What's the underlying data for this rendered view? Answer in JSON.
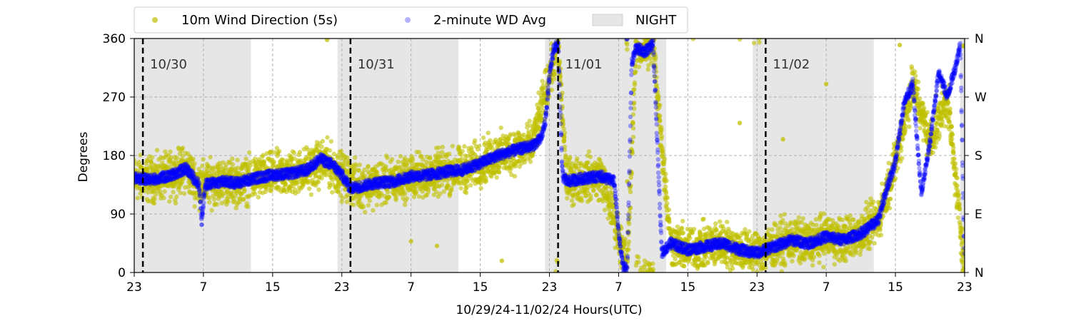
{
  "chart_data": {
    "type": "scatter",
    "title": "",
    "xlabel": "10/29/24-11/02/24  Hours(UTC)",
    "ylabel": "Degrees",
    "xlim": [
      0,
      96
    ],
    "ylim": [
      0,
      360
    ],
    "x_ticks": [
      0,
      8,
      16,
      24,
      32,
      40,
      48,
      56,
      64,
      72,
      80,
      88,
      96
    ],
    "x_tick_labels": [
      "23",
      "7",
      "15",
      "23",
      "7",
      "15",
      "23",
      "7",
      "15",
      "23",
      "7",
      "15",
      "23"
    ],
    "y_ticks": [
      0,
      90,
      180,
      270,
      360
    ],
    "y_tick_labels": [
      "0",
      "90",
      "180",
      "270",
      "360"
    ],
    "right_ticks": [
      0,
      90,
      180,
      270,
      360
    ],
    "right_tick_labels": [
      "N",
      "E",
      "S",
      "W",
      "N"
    ],
    "grid": true,
    "legend_position": "top",
    "legend": [
      {
        "label": "10m Wind Direction (5s)",
        "color": "#bfbf00",
        "marker": "dot"
      },
      {
        "label": "2-minute WD Avg",
        "color": "#0000ff",
        "marker": "dot"
      },
      {
        "label": "NIGHT",
        "color": "#e6e6e6",
        "marker": "patch"
      }
    ],
    "day_markers": [
      {
        "x": 1,
        "label": "10/30"
      },
      {
        "x": 25,
        "label": "10/31"
      },
      {
        "x": 49,
        "label": "11/01"
      },
      {
        "x": 73,
        "label": "11/02"
      }
    ],
    "night_periods": [
      [
        0,
        13.5
      ],
      [
        23.5,
        37.5
      ],
      [
        47.5,
        61.5
      ],
      [
        71.5,
        85.5
      ],
      [
        95.5,
        96
      ]
    ],
    "series": [
      {
        "name": "2-minute WD Avg",
        "color": "#0000ff",
        "points": [
          [
            0,
            145
          ],
          [
            2,
            143
          ],
          [
            4,
            148
          ],
          [
            6,
            160
          ],
          [
            7.5,
            135
          ],
          [
            7.8,
            80
          ],
          [
            8.2,
            135
          ],
          [
            10,
            140
          ],
          [
            12,
            138
          ],
          [
            14,
            145
          ],
          [
            16,
            150
          ],
          [
            18,
            152
          ],
          [
            20,
            158
          ],
          [
            21.5,
            175
          ],
          [
            23,
            165
          ],
          [
            24,
            150
          ],
          [
            25,
            130
          ],
          [
            26,
            132
          ],
          [
            28,
            138
          ],
          [
            30,
            140
          ],
          [
            32,
            148
          ],
          [
            34,
            150
          ],
          [
            36,
            155
          ],
          [
            38,
            158
          ],
          [
            40,
            168
          ],
          [
            42,
            180
          ],
          [
            44,
            188
          ],
          [
            46,
            195
          ],
          [
            47,
            205
          ],
          [
            47.5,
            230
          ],
          [
            48,
            300
          ],
          [
            48.5,
            345
          ],
          [
            49,
            350
          ],
          [
            49.5,
            150
          ],
          [
            50,
            140
          ],
          [
            52,
            145
          ],
          [
            54,
            148
          ],
          [
            55.5,
            140
          ],
          [
            56,
            60
          ],
          [
            56.5,
            10
          ],
          [
            57,
            5
          ],
          [
            57.5,
            320
          ],
          [
            58,
            345
          ],
          [
            59,
            340
          ],
          [
            60,
            350
          ],
          [
            61,
            30
          ],
          [
            62,
            45
          ],
          [
            64,
            35
          ],
          [
            66,
            40
          ],
          [
            68,
            45
          ],
          [
            70,
            35
          ],
          [
            72,
            30
          ],
          [
            74,
            40
          ],
          [
            76,
            50
          ],
          [
            78,
            45
          ],
          [
            80,
            55
          ],
          [
            82,
            50
          ],
          [
            84,
            60
          ],
          [
            86,
            80
          ],
          [
            87,
            130
          ],
          [
            88,
            170
          ],
          [
            89,
            260
          ],
          [
            90,
            290
          ],
          [
            91,
            120
          ],
          [
            92,
            200
          ],
          [
            93,
            310
          ],
          [
            94,
            270
          ],
          [
            95,
            320
          ],
          [
            95.5,
            350
          ],
          [
            96,
            5
          ]
        ]
      },
      {
        "name": "10m Wind Direction (5s)",
        "color": "#bfbf00",
        "points": [
          [
            0,
            145
          ],
          [
            2,
            143
          ],
          [
            4,
            148
          ],
          [
            6,
            160
          ],
          [
            7.5,
            135
          ],
          [
            10,
            140
          ],
          [
            12,
            138
          ],
          [
            14,
            145
          ],
          [
            16,
            150
          ],
          [
            18,
            152
          ],
          [
            20,
            158
          ],
          [
            22,
            170
          ],
          [
            24,
            150
          ],
          [
            26,
            132
          ],
          [
            28,
            138
          ],
          [
            30,
            140
          ],
          [
            32,
            148
          ],
          [
            34,
            150
          ],
          [
            36,
            155
          ],
          [
            38,
            158
          ],
          [
            40,
            168
          ],
          [
            42,
            180
          ],
          [
            44,
            188
          ],
          [
            46,
            195
          ],
          [
            48,
            300
          ],
          [
            49,
            350
          ],
          [
            50,
            140
          ],
          [
            52,
            145
          ],
          [
            54,
            148
          ],
          [
            56,
            60
          ],
          [
            57,
            5
          ],
          [
            58,
            345
          ],
          [
            60,
            350
          ],
          [
            62,
            45
          ],
          [
            64,
            35
          ],
          [
            66,
            40
          ],
          [
            68,
            45
          ],
          [
            70,
            35
          ],
          [
            72,
            30
          ],
          [
            74,
            40
          ],
          [
            76,
            50
          ],
          [
            78,
            45
          ],
          [
            80,
            55
          ],
          [
            82,
            50
          ],
          [
            84,
            60
          ],
          [
            86,
            80
          ],
          [
            88,
            170
          ],
          [
            90,
            290
          ],
          [
            92,
            200
          ],
          [
            94,
            270
          ],
          [
            96,
            5
          ]
        ],
        "spread": 25
      }
    ],
    "outliers_5s": [
      [
        22.3,
        358
      ],
      [
        32,
        48
      ],
      [
        35,
        41
      ],
      [
        42.5,
        18
      ],
      [
        57,
        140
      ],
      [
        70,
        230
      ],
      [
        75,
        205
      ],
      [
        80,
        290
      ],
      [
        88.5,
        350
      ]
    ]
  }
}
